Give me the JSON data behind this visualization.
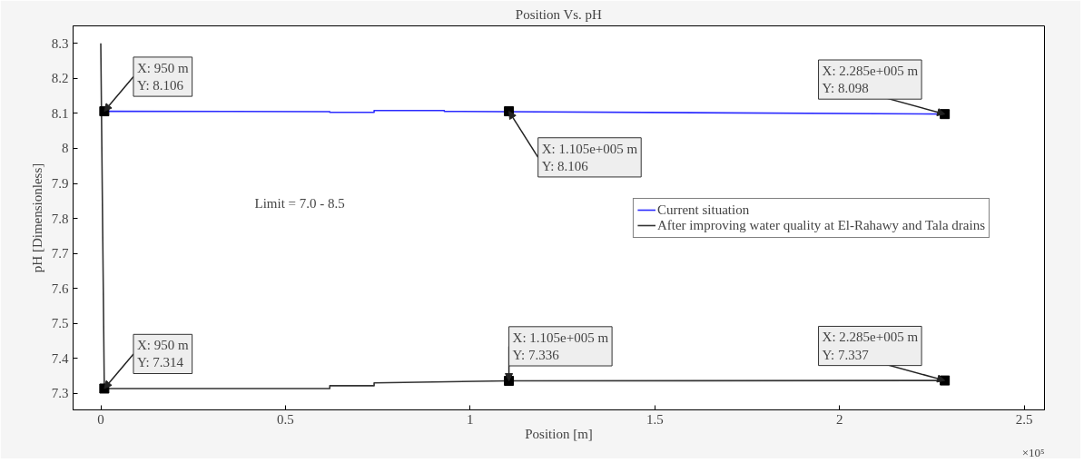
{
  "chart_data": {
    "type": "line",
    "title": "Position Vs. pH",
    "xlabel": "Position [m]",
    "ylabel": "pH [Dimensionless]",
    "xlim": [
      -0.075,
      2.555
    ],
    "ylim": [
      7.253,
      8.35
    ],
    "xticks": [
      0,
      0.5,
      1,
      1.5,
      2,
      2.5
    ],
    "yticks": [
      7.3,
      7.4,
      7.5,
      7.6,
      7.7,
      7.8,
      7.9,
      {
        "value": 8.0,
        "label": "8"
      },
      8.1,
      8.2,
      8.3
    ],
    "series": [
      {
        "name": "Current situation",
        "color": "#2b2bff",
        "x": [
          0.0095,
          0.62,
          0.62,
          0.74,
          0.74,
          0.93,
          0.93,
          2.285
        ],
        "values": [
          8.106,
          8.105,
          8.103,
          8.103,
          8.108,
          8.108,
          8.106,
          8.098
        ]
      },
      {
        "name": "After improving water quality at El-Rahawy and Tala drains",
        "color": "#333333",
        "x": [
          0,
          0.0095,
          0.62,
          0.62,
          0.74,
          0.74,
          1.105,
          2.285
        ],
        "values": [
          8.3,
          7.314,
          7.314,
          7.322,
          7.322,
          7.33,
          7.336,
          7.337
        ]
      }
    ],
    "annotations": [
      {
        "text": "X: 950 m\nY: 8.106",
        "x": 0.0095,
        "y": 8.106
      },
      {
        "text": "X: 1.105e+005 m\nY: 8.106",
        "x": 1.105,
        "y": 8.106
      },
      {
        "text": "X: 2.285e+005 m\nY: 8.098",
        "x": 2.285,
        "y": 8.098
      },
      {
        "text": "X: 950 m\nY: 7.314",
        "x": 0.0095,
        "y": 7.314
      },
      {
        "text": "X: 1.105e+005 m\nY: 7.336",
        "x": 1.105,
        "y": 7.336
      },
      {
        "text": "X: 2.285e+005 m\nY: 7.337",
        "x": 2.285,
        "y": 7.337
      },
      "Limit = 7.0 - 8.5",
      "×10⁵"
    ],
    "legend": "right",
    "grid": false,
    "line_style": "solid",
    "marker": "none"
  }
}
